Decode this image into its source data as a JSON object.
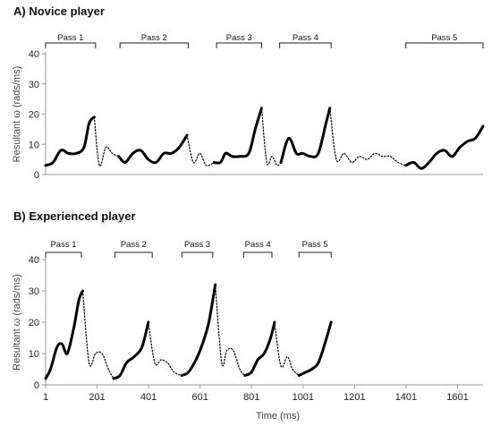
{
  "chart_data": [
    {
      "type": "line",
      "title": "A) Novice player",
      "xlabel": "",
      "ylabel": "Resultant ω (rads/ms)",
      "ylim": [
        0,
        40
      ],
      "yticks": [
        "0",
        "10",
        "20",
        "30",
        "40"
      ],
      "xlim": [
        1,
        1700
      ],
      "legend": "none",
      "grid": false,
      "passes": [
        {
          "label": "Pass 1",
          "x_start": 1,
          "x_end": 195
        },
        {
          "label": "Pass 2",
          "x_start": 290,
          "x_end": 555
        },
        {
          "label": "Pass 3",
          "x_start": 665,
          "x_end": 840
        },
        {
          "label": "Pass 4",
          "x_start": 910,
          "x_end": 1110
        },
        {
          "label": "Pass 5",
          "x_start": 1400,
          "x_end": 1700
        }
      ],
      "series": [
        {
          "style": "solid",
          "x": [
            1,
            30,
            60,
            90,
            120,
            150,
            170,
            190
          ],
          "y": [
            3,
            4,
            8,
            7,
            7,
            9,
            17,
            19
          ]
        },
        {
          "style": "dotted",
          "x": [
            190,
            210,
            235,
            260,
            285
          ],
          "y": [
            19,
            3,
            9,
            7,
            6
          ]
        },
        {
          "style": "solid",
          "x": [
            285,
            310,
            340,
            370,
            400,
            430,
            460,
            490,
            520,
            550
          ],
          "y": [
            6,
            4,
            7,
            8,
            5,
            4,
            7,
            7,
            9,
            13
          ]
        },
        {
          "style": "dotted",
          "x": [
            550,
            575,
            600,
            625,
            655
          ],
          "y": [
            13,
            4,
            7,
            3,
            4
          ]
        },
        {
          "style": "solid",
          "x": [
            655,
            680,
            700,
            725,
            755,
            790,
            815,
            840
          ],
          "y": [
            4,
            4,
            7,
            6,
            6,
            7,
            15,
            22
          ]
        },
        {
          "style": "dotted",
          "x": [
            840,
            860,
            880,
            900,
            915
          ],
          "y": [
            22,
            4,
            6,
            3,
            4
          ]
        },
        {
          "style": "solid",
          "x": [
            915,
            945,
            975,
            1000,
            1030,
            1060,
            1090,
            1105
          ],
          "y": [
            4,
            12,
            7,
            7,
            6,
            7,
            17,
            22
          ]
        },
        {
          "style": "dotted",
          "x": [
            1105,
            1130,
            1160,
            1190,
            1220,
            1250,
            1280,
            1310,
            1340,
            1370,
            1400
          ],
          "y": [
            22,
            5,
            7,
            4,
            6,
            5,
            7,
            6,
            6,
            4,
            3
          ]
        },
        {
          "style": "solid",
          "x": [
            1400,
            1430,
            1460,
            1490,
            1520,
            1550,
            1580,
            1610,
            1640,
            1670,
            1700
          ],
          "y": [
            3,
            4,
            2,
            4,
            7,
            8,
            6,
            9,
            11,
            12,
            16
          ]
        }
      ]
    },
    {
      "type": "line",
      "title": "B) Experienced player",
      "xlabel": "Time (ms)",
      "ylabel": "Resultant ω (rads/ms)",
      "ylim": [
        0,
        40
      ],
      "yticks": [
        "0",
        "10",
        "20",
        "30",
        "40"
      ],
      "xlim": [
        1,
        1700
      ],
      "xticks": [
        1,
        201,
        401,
        601,
        801,
        1001,
        1201,
        1401,
        1601
      ],
      "xtick_labels": [
        "1",
        "201",
        "401",
        "601",
        "801",
        "1001",
        "1201",
        "1401",
        "1601"
      ],
      "legend": "none",
      "grid": false,
      "passes": [
        {
          "label": "Pass 1",
          "x_start": 1,
          "x_end": 140
        },
        {
          "label": "Pass 2",
          "x_start": 270,
          "x_end": 415
        },
        {
          "label": "Pass 3",
          "x_start": 530,
          "x_end": 650
        },
        {
          "label": "Pass 4",
          "x_start": 770,
          "x_end": 880
        },
        {
          "label": "Pass 5",
          "x_start": 985,
          "x_end": 1110
        }
      ],
      "series": [
        {
          "style": "solid",
          "x": [
            1,
            20,
            45,
            65,
            85,
            110,
            130,
            145
          ],
          "y": [
            2,
            5,
            12,
            13,
            10,
            18,
            27,
            30
          ]
        },
        {
          "style": "dotted",
          "x": [
            145,
            170,
            195,
            220,
            245,
            265
          ],
          "y": [
            30,
            7,
            10,
            10,
            5,
            2
          ]
        },
        {
          "style": "solid",
          "x": [
            265,
            290,
            315,
            345,
            375,
            400
          ],
          "y": [
            2,
            3,
            7,
            9,
            12,
            20
          ]
        },
        {
          "style": "dotted",
          "x": [
            400,
            425,
            450,
            475,
            500,
            530
          ],
          "y": [
            20,
            7,
            8,
            7,
            4,
            3
          ]
        },
        {
          "style": "solid",
          "x": [
            530,
            555,
            585,
            610,
            635,
            660
          ],
          "y": [
            3,
            4,
            8,
            13,
            20,
            32
          ]
        },
        {
          "style": "dotted",
          "x": [
            660,
            685,
            705,
            730,
            755,
            775
          ],
          "y": [
            32,
            7,
            11,
            11,
            5,
            3
          ]
        },
        {
          "style": "solid",
          "x": [
            775,
            800,
            825,
            850,
            875,
            890
          ],
          "y": [
            3,
            4,
            8,
            10,
            15,
            20
          ]
        },
        {
          "style": "dotted",
          "x": [
            890,
            915,
            940,
            960,
            985
          ],
          "y": [
            20,
            6,
            9,
            5,
            3
          ]
        },
        {
          "style": "solid",
          "x": [
            985,
            1010,
            1035,
            1060,
            1085,
            1110
          ],
          "y": [
            3,
            4,
            5,
            7,
            13,
            20
          ]
        }
      ]
    }
  ]
}
